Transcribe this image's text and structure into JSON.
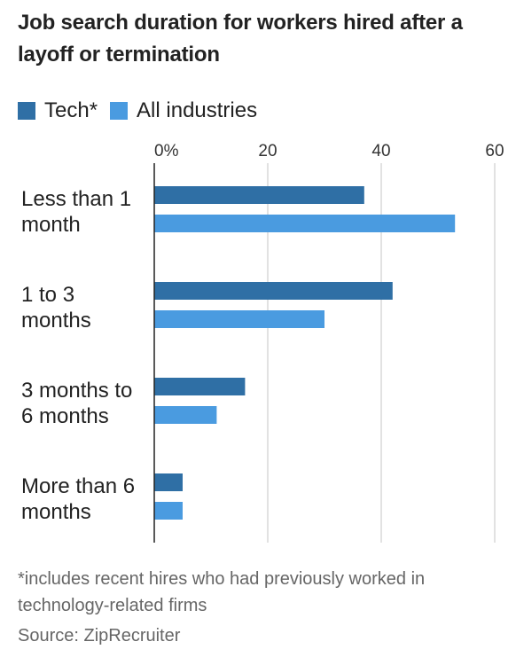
{
  "chart_data": {
    "type": "bar",
    "orientation": "horizontal",
    "title": "Job search duration for workers hired after a layoff or termination",
    "categories": [
      [
        "Less than 1",
        "month"
      ],
      [
        "1 to 3",
        "months"
      ],
      [
        "3 months to",
        "6 months"
      ],
      [
        "More than 6",
        "months"
      ]
    ],
    "series": [
      {
        "name": "Tech*",
        "color": "#2f6fa5",
        "values": [
          37,
          42,
          16,
          5
        ]
      },
      {
        "name": "All industries",
        "color": "#4a9be0",
        "values": [
          53,
          30,
          11,
          5
        ]
      }
    ],
    "xlim": [
      0,
      60
    ],
    "xticks": [
      0,
      20,
      40,
      60
    ],
    "xtick_labels": [
      "0%",
      "20",
      "40",
      "60"
    ],
    "grid": true,
    "legend_position": "top-left"
  },
  "footnote": "*includes recent hires who had previously worked in technology-related firms",
  "source": "Source: ZipRecruiter"
}
